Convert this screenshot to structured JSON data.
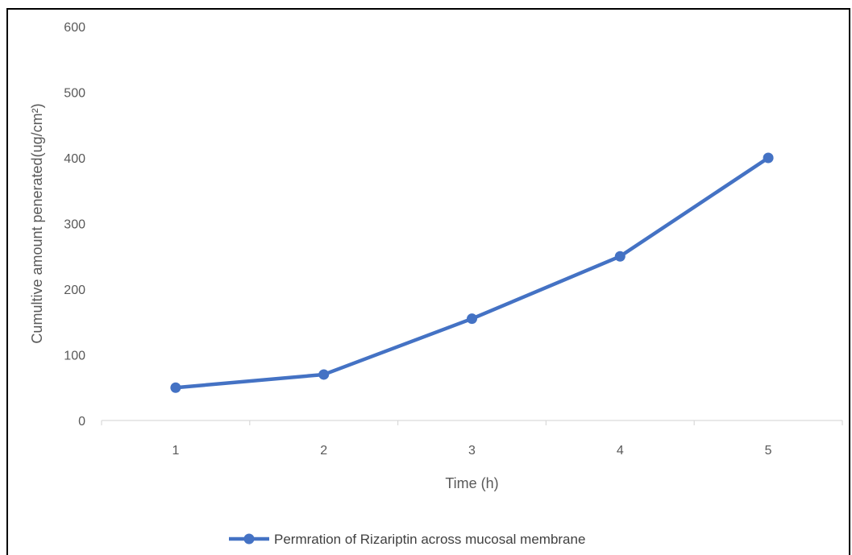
{
  "chart_data": {
    "type": "line",
    "title": "",
    "xlabel": "Time (h)",
    "ylabel": "Cumultive amount penerated(ug/cm²)",
    "x": [
      1,
      2,
      3,
      4,
      5
    ],
    "series": [
      {
        "name": "Permration of Rizariptin across mucosal membrane",
        "values": [
          50,
          70,
          155,
          250,
          400
        ],
        "color": "#4472c4"
      }
    ],
    "ylim": [
      0,
      600
    ],
    "yticks": [
      0,
      100,
      200,
      300,
      400,
      500,
      600
    ],
    "grid": false,
    "legend": "bottom"
  }
}
